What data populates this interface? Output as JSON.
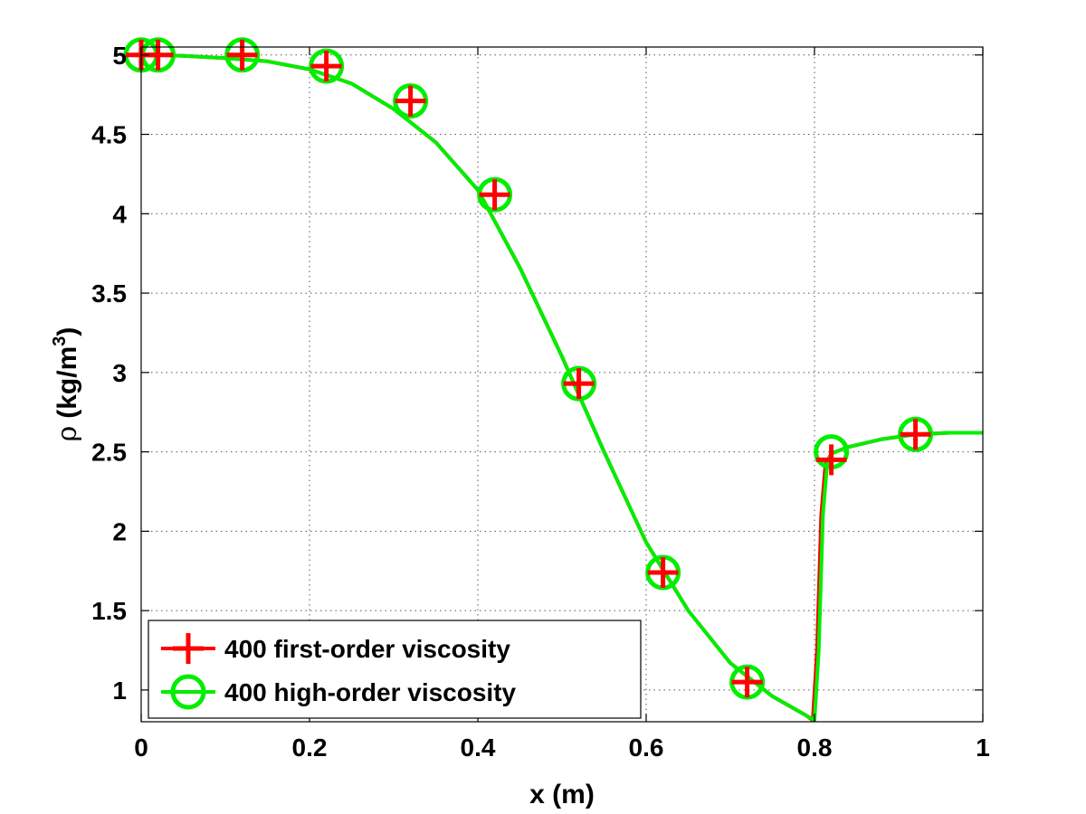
{
  "chart_data": {
    "type": "line",
    "title": "",
    "xlabel": "x (m)",
    "ylabel_text": "(kg/m",
    "ylabel_symbol": "ρ",
    "ylabel_superscript": "3",
    "ylabel_close": ")",
    "xlim": [
      0,
      1
    ],
    "ylim": [
      0.8,
      5.05
    ],
    "xticks": [
      0,
      0.2,
      0.4,
      0.6,
      0.8,
      1
    ],
    "xtick_labels": [
      "0",
      "0.2",
      "0.4",
      "0.6",
      "0.8",
      "1"
    ],
    "yticks": [
      1,
      1.5,
      2,
      2.5,
      3,
      3.5,
      4,
      4.5,
      5
    ],
    "ytick_labels": [
      "1",
      "1.5",
      "2",
      "2.5",
      "3",
      "3.5",
      "4",
      "4.5",
      "5"
    ],
    "grid": true,
    "legend_location": "bottom-left",
    "curve": {
      "x": [
        0,
        0.02,
        0.05,
        0.1,
        0.15,
        0.2,
        0.25,
        0.3,
        0.35,
        0.4,
        0.45,
        0.5,
        0.55,
        0.6,
        0.65,
        0.7,
        0.75,
        0.79,
        0.8,
        0.805,
        0.81,
        0.815,
        0.82,
        0.84,
        0.88,
        0.92,
        0.96,
        1.0
      ],
      "y": [
        5.0,
        5.0,
        4.995,
        4.98,
        4.96,
        4.91,
        4.82,
        4.66,
        4.45,
        4.15,
        3.66,
        3.1,
        2.5,
        1.93,
        1.5,
        1.17,
        0.96,
        0.84,
        0.81,
        1.25,
        2.1,
        2.42,
        2.49,
        2.53,
        2.58,
        2.61,
        2.62,
        2.62
      ]
    },
    "series": [
      {
        "name": "400 first-order viscosity",
        "color": "#ff0000",
        "marker": "plus",
        "x": [
          0.0,
          0.02,
          0.12,
          0.22,
          0.32,
          0.42,
          0.52,
          0.62,
          0.72,
          0.82,
          0.92
        ],
        "y": [
          5.0,
          5.0,
          5.0,
          4.93,
          4.71,
          4.12,
          2.93,
          1.74,
          1.05,
          2.45,
          2.61
        ]
      },
      {
        "name": "400 high-order viscosity",
        "color": "#00ee00",
        "marker": "circle",
        "x": [
          0.0,
          0.02,
          0.12,
          0.22,
          0.32,
          0.42,
          0.52,
          0.62,
          0.72,
          0.82,
          0.92
        ],
        "y": [
          5.0,
          5.0,
          5.0,
          4.93,
          4.71,
          4.12,
          2.93,
          1.74,
          1.05,
          2.5,
          2.61
        ]
      }
    ]
  }
}
